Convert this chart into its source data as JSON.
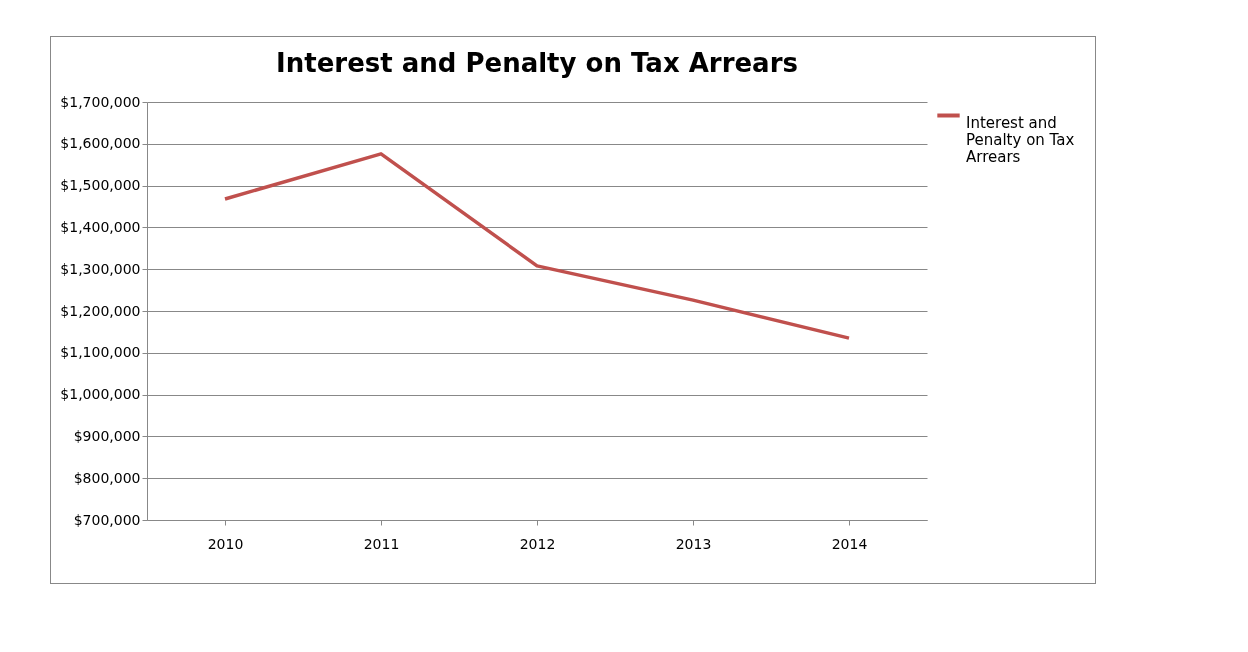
{
  "chart_data": {
    "type": "line",
    "title": "Interest and Penalty on Tax Arrears",
    "categories": [
      "2010",
      "2011",
      "2012",
      "2013",
      "2014"
    ],
    "series": [
      {
        "name": "Interest and Penalty on Tax Arrears",
        "color": "#c0504d",
        "values": [
          1468000,
          1576000,
          1308000,
          1226000,
          1135000
        ]
      }
    ],
    "ylim": [
      700000,
      1700000
    ],
    "yticks": [
      {
        "value": 700000,
        "label": "$700,000"
      },
      {
        "value": 800000,
        "label": "$800,000"
      },
      {
        "value": 900000,
        "label": "$900,000"
      },
      {
        "value": 1000000,
        "label": "$1,000,000"
      },
      {
        "value": 1100000,
        "label": "$1,100,000"
      },
      {
        "value": 1200000,
        "label": "$1,200,000"
      },
      {
        "value": 1300000,
        "label": "$1,300,000"
      },
      {
        "value": 1400000,
        "label": "$1,400,000"
      },
      {
        "value": 1500000,
        "label": "$1,500,000"
      },
      {
        "value": 1600000,
        "label": "$1,600,000"
      },
      {
        "value": 1700000,
        "label": "$1,700,000"
      }
    ],
    "grid": "y",
    "legend": "right",
    "marker": "none",
    "line_style": "solid"
  }
}
